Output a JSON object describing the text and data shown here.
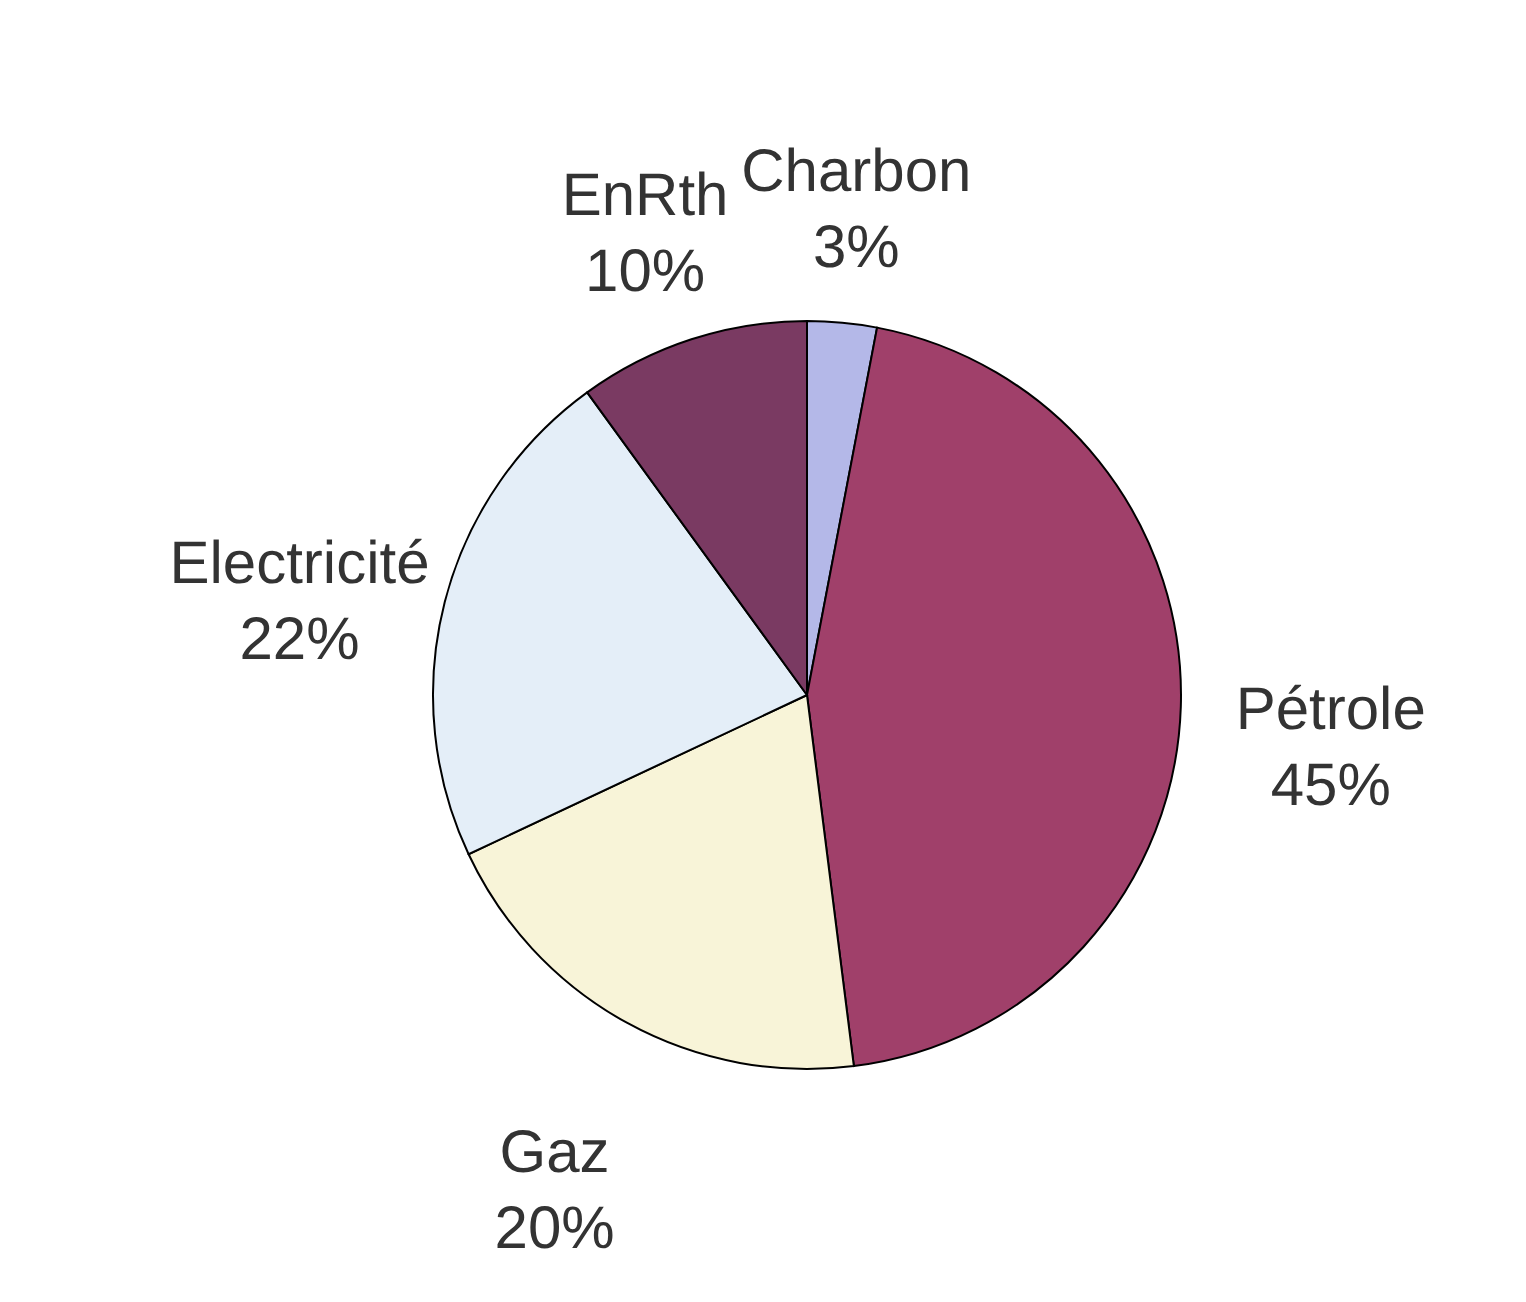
{
  "chart_data": {
    "type": "pie",
    "categories": [
      "Charbon",
      "Pétrole",
      "Gaz",
      "Electricité",
      "EnRth"
    ],
    "values": [
      3,
      45,
      20,
      22,
      10
    ],
    "colors": [
      "#b4b8e8",
      "#a0406a",
      "#f8f4d8",
      "#e4eef8",
      "#7a3a62"
    ],
    "value_labels": [
      "3%",
      "45%",
      "20%",
      "22%",
      "10%"
    ],
    "legend": false
  }
}
